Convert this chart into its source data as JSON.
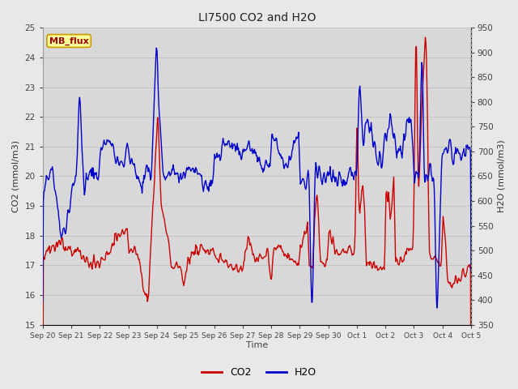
{
  "title": "LI7500 CO2 and H2O",
  "xlabel": "Time",
  "ylabel_left": "CO2 (mmol/m3)",
  "ylabel_right": "H2O (mmol/m3)",
  "co2_color": "#cc0000",
  "h2o_color": "#0000cc",
  "ylim_left": [
    15.0,
    25.0
  ],
  "ylim_right": [
    350,
    950
  ],
  "yticks_left": [
    15.0,
    16.0,
    17.0,
    18.0,
    19.0,
    20.0,
    21.0,
    22.0,
    23.0,
    24.0,
    25.0
  ],
  "yticks_right": [
    350,
    400,
    450,
    500,
    550,
    600,
    650,
    700,
    750,
    800,
    850,
    900,
    950
  ],
  "xtick_labels": [
    "Sep 20",
    "Sep 21",
    "Sep 22",
    "Sep 23",
    "Sep 24",
    "Sep 25",
    "Sep 26",
    "Sep 27",
    "Sep 28",
    "Sep 29",
    "Sep 30",
    "Oct 1",
    "Oct 2",
    "Oct 3",
    "Oct 4",
    "Oct 5"
  ],
  "fig_bg_color": "#e8e8e8",
  "plot_bg_color": "#d8d8d8",
  "grid_color": "#c8c8c8",
  "annotation_text": "MB_flux",
  "annotation_bg": "#ffff99",
  "annotation_border": "#cc9900",
  "annotation_text_color": "#990000",
  "legend_co2": "CO2",
  "legend_h2o": "H2O",
  "linewidth": 1.0
}
